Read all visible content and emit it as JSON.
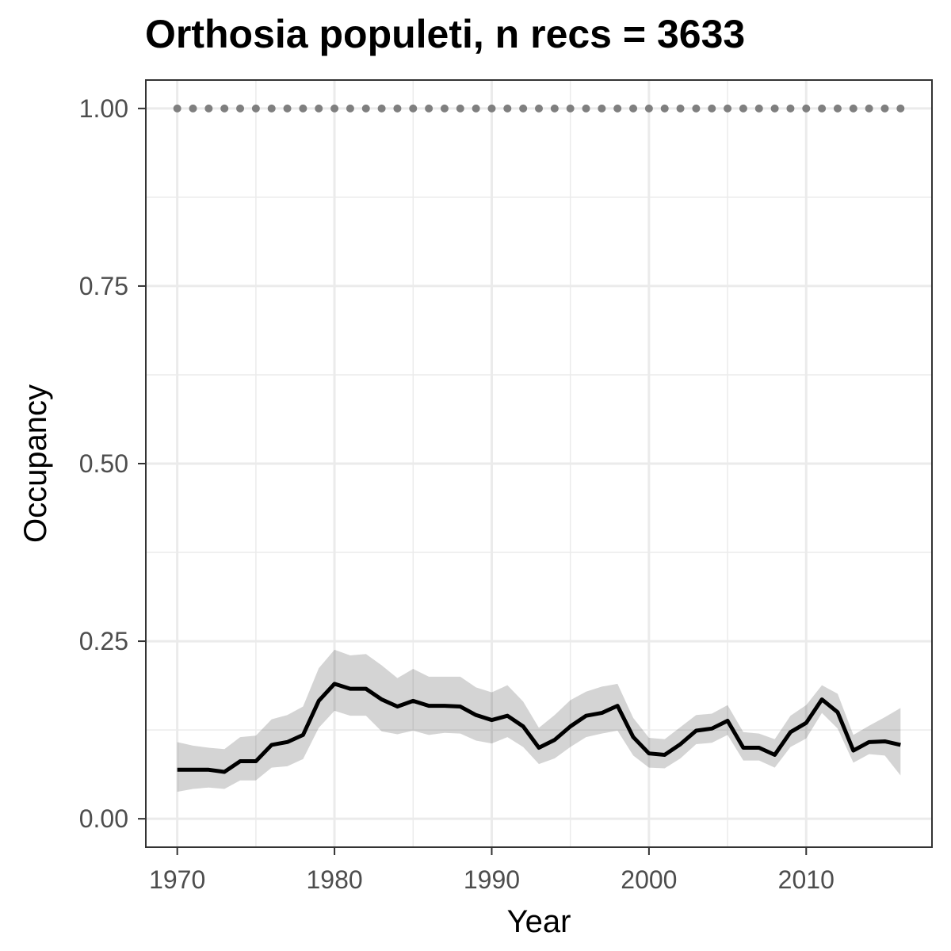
{
  "chart_data": {
    "type": "line",
    "title": "Orthosia populeti, n recs = 3633",
    "xlabel": "Year",
    "ylabel": "Occupancy",
    "xlim": [
      1968,
      2018
    ],
    "ylim": [
      -0.04,
      1.04
    ],
    "x_ticks": [
      1970,
      1980,
      1990,
      2000,
      2010
    ],
    "x_tick_labels": [
      "1970",
      "1980",
      "1990",
      "2000",
      "2010"
    ],
    "y_ticks": [
      0,
      0.25,
      0.5,
      0.75,
      1.0
    ],
    "y_tick_labels": [
      "0.00",
      "0.25",
      "0.50",
      "0.75",
      "1.00"
    ],
    "grid": true,
    "x": [
      1970,
      1971,
      1972,
      1973,
      1974,
      1975,
      1976,
      1977,
      1978,
      1979,
      1980,
      1981,
      1982,
      1983,
      1984,
      1985,
      1986,
      1987,
      1988,
      1989,
      1990,
      1991,
      1992,
      1993,
      1994,
      1995,
      1996,
      1997,
      1998,
      1999,
      2000,
      2001,
      2002,
      2003,
      2004,
      2005,
      2006,
      2007,
      2008,
      2009,
      2010,
      2011,
      2012,
      2013,
      2014,
      2015,
      2016
    ],
    "series": [
      {
        "style": "line",
        "color": "#000000",
        "values": [
          0.069,
          0.069,
          0.069,
          0.066,
          0.081,
          0.081,
          0.104,
          0.108,
          0.118,
          0.166,
          0.19,
          0.183,
          0.183,
          0.168,
          0.158,
          0.166,
          0.159,
          0.159,
          0.158,
          0.146,
          0.139,
          0.145,
          0.13,
          0.1,
          0.111,
          0.13,
          0.145,
          0.149,
          0.159,
          0.115,
          0.092,
          0.09,
          0.105,
          0.124,
          0.127,
          0.138,
          0.1,
          0.1,
          0.09,
          0.122,
          0.135,
          0.168,
          0.15,
          0.096,
          0.108,
          0.109,
          0.104
        ],
        "lower": [
          0.038,
          0.042,
          0.044,
          0.042,
          0.054,
          0.054,
          0.072,
          0.074,
          0.084,
          0.128,
          0.152,
          0.145,
          0.145,
          0.123,
          0.119,
          0.124,
          0.118,
          0.121,
          0.12,
          0.11,
          0.106,
          0.115,
          0.101,
          0.077,
          0.085,
          0.101,
          0.115,
          0.12,
          0.124,
          0.089,
          0.072,
          0.071,
          0.085,
          0.105,
          0.107,
          0.118,
          0.082,
          0.082,
          0.072,
          0.101,
          0.113,
          0.149,
          0.127,
          0.079,
          0.091,
          0.089,
          0.061
        ],
        "upper": [
          0.108,
          0.103,
          0.1,
          0.098,
          0.115,
          0.117,
          0.14,
          0.146,
          0.158,
          0.212,
          0.238,
          0.23,
          0.232,
          0.216,
          0.198,
          0.211,
          0.2,
          0.2,
          0.2,
          0.185,
          0.178,
          0.188,
          0.165,
          0.128,
          0.146,
          0.167,
          0.179,
          0.186,
          0.19,
          0.142,
          0.114,
          0.112,
          0.129,
          0.146,
          0.148,
          0.16,
          0.122,
          0.12,
          0.112,
          0.145,
          0.16,
          0.188,
          0.176,
          0.118,
          0.131,
          0.143,
          0.156
        ]
      },
      {
        "style": "dotted",
        "color": "#7f7f7f",
        "values": [
          1,
          1,
          1,
          1,
          1,
          1,
          1,
          1,
          1,
          1,
          1,
          1,
          1,
          1,
          1,
          1,
          1,
          1,
          1,
          1,
          1,
          1,
          1,
          1,
          1,
          1,
          1,
          1,
          1,
          1,
          1,
          1,
          1,
          1,
          1,
          1,
          1,
          1,
          1,
          1,
          1,
          1,
          1,
          1,
          1,
          1,
          1
        ]
      }
    ]
  }
}
